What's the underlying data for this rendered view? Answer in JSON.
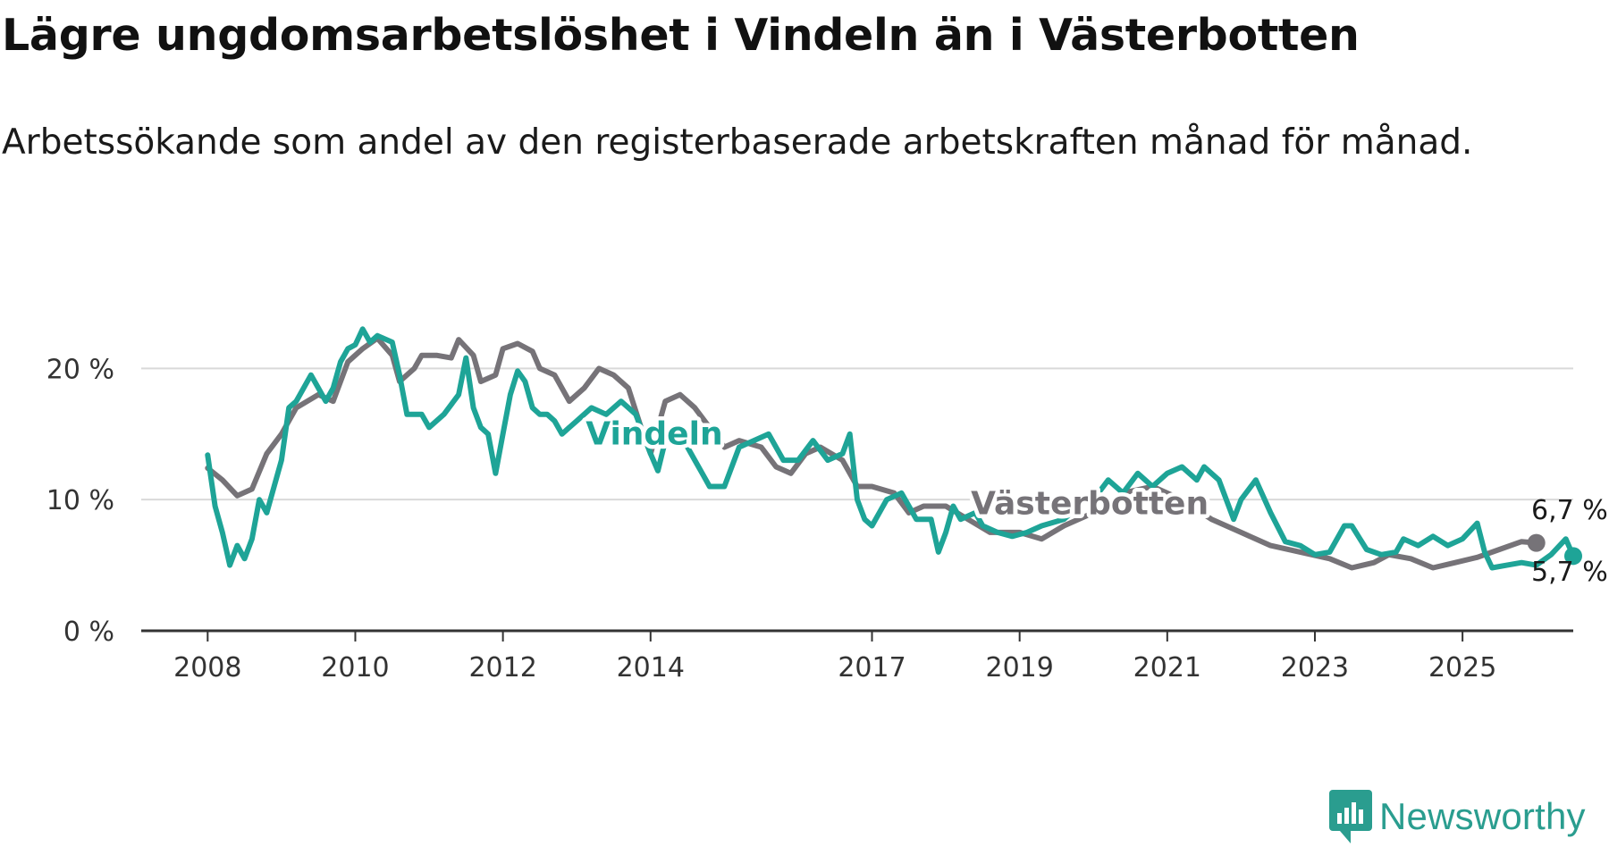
{
  "title": "Lägre ungdomsarbetslöshet i Vindeln än i Västerbotten",
  "subtitle": "Arbetssökande som andel av den registerbaserade arbetskraften månad för månad.",
  "brand": {
    "name": "Newsworthy",
    "color": "#2a9d8f"
  },
  "chart_data": {
    "type": "line",
    "title": "Lägre ungdomsarbetslöshet i Vindeln än i Västerbotten",
    "subtitle": "Arbetssökande som andel av den registerbaserade arbetskraften månad för månad.",
    "xlabel": "",
    "ylabel": "",
    "x_unit": "year (decimal, monthly data)",
    "xlim": [
      2007.1,
      2026.5
    ],
    "ylim": [
      0,
      22
    ],
    "x_ticks": [
      2008,
      2010,
      2012,
      2014,
      2017,
      2019,
      2021,
      2023,
      2025
    ],
    "x_tick_labels": [
      "2008",
      "2010",
      "2012",
      "2014",
      "2017",
      "2019",
      "2021",
      "2023",
      "2025"
    ],
    "y_ticks": [
      0,
      10,
      20
    ],
    "y_tick_labels": [
      "0 %",
      "10 %",
      "20 %"
    ],
    "grid": "horizontal",
    "legend": "inline labels",
    "series": [
      {
        "name": "Västerbotten",
        "color": "#767378",
        "end_label": "6,7 %",
        "points": [
          [
            2008.0,
            12.4
          ],
          [
            2008.2,
            11.5
          ],
          [
            2008.4,
            10.3
          ],
          [
            2008.6,
            10.8
          ],
          [
            2008.8,
            13.5
          ],
          [
            2009.0,
            15.0
          ],
          [
            2009.2,
            17.0
          ],
          [
            2009.5,
            18.0
          ],
          [
            2009.7,
            17.5
          ],
          [
            2009.9,
            20.5
          ],
          [
            2010.1,
            21.5
          ],
          [
            2010.3,
            22.3
          ],
          [
            2010.5,
            21.0
          ],
          [
            2010.6,
            19.0
          ],
          [
            2010.8,
            20.0
          ],
          [
            2010.9,
            21.0
          ],
          [
            2011.1,
            21.0
          ],
          [
            2011.3,
            20.8
          ],
          [
            2011.4,
            22.2
          ],
          [
            2011.6,
            21.0
          ],
          [
            2011.7,
            19.0
          ],
          [
            2011.9,
            19.5
          ],
          [
            2012.0,
            21.5
          ],
          [
            2012.2,
            21.9
          ],
          [
            2012.4,
            21.3
          ],
          [
            2012.5,
            20.0
          ],
          [
            2012.7,
            19.5
          ],
          [
            2012.9,
            17.5
          ],
          [
            2013.1,
            18.5
          ],
          [
            2013.3,
            20.0
          ],
          [
            2013.5,
            19.5
          ],
          [
            2013.7,
            18.5
          ],
          [
            2013.9,
            15.0
          ],
          [
            2014.0,
            13.5
          ],
          [
            2014.2,
            17.5
          ],
          [
            2014.4,
            18.0
          ],
          [
            2014.6,
            17.0
          ],
          [
            2014.8,
            15.5
          ],
          [
            2015.0,
            14.0
          ],
          [
            2015.2,
            14.5
          ],
          [
            2015.5,
            14.0
          ],
          [
            2015.7,
            12.5
          ],
          [
            2015.9,
            12.0
          ],
          [
            2016.1,
            13.5
          ],
          [
            2016.3,
            14.0
          ],
          [
            2016.6,
            13.0
          ],
          [
            2016.8,
            11.0
          ],
          [
            2017.0,
            11.0
          ],
          [
            2017.3,
            10.5
          ],
          [
            2017.5,
            9.0
          ],
          [
            2017.7,
            9.5
          ],
          [
            2018.0,
            9.5
          ],
          [
            2018.3,
            8.5
          ],
          [
            2018.6,
            7.5
          ],
          [
            2019.0,
            7.5
          ],
          [
            2019.3,
            7.0
          ],
          [
            2019.6,
            8.0
          ],
          [
            2020.0,
            9.0
          ],
          [
            2020.4,
            10.5
          ],
          [
            2020.8,
            11.0
          ],
          [
            2021.2,
            10.0
          ],
          [
            2021.6,
            8.5
          ],
          [
            2022.0,
            7.5
          ],
          [
            2022.4,
            6.5
          ],
          [
            2022.8,
            6.0
          ],
          [
            2023.2,
            5.5
          ],
          [
            2023.5,
            4.8
          ],
          [
            2023.8,
            5.2
          ],
          [
            2024.0,
            5.8
          ],
          [
            2024.3,
            5.5
          ],
          [
            2024.6,
            4.8
          ],
          [
            2024.9,
            5.2
          ],
          [
            2025.2,
            5.6
          ],
          [
            2025.5,
            6.2
          ],
          [
            2025.8,
            6.8
          ],
          [
            2026.0,
            6.7
          ]
        ]
      },
      {
        "name": "Vindeln",
        "color": "#1ea497",
        "end_label": "5,7 %",
        "points": [
          [
            2008.0,
            13.4
          ],
          [
            2008.1,
            9.5
          ],
          [
            2008.2,
            7.5
          ],
          [
            2008.3,
            5.0
          ],
          [
            2008.4,
            6.5
          ],
          [
            2008.5,
            5.5
          ],
          [
            2008.6,
            7.0
          ],
          [
            2008.7,
            10.0
          ],
          [
            2008.8,
            9.0
          ],
          [
            2009.0,
            13.0
          ],
          [
            2009.1,
            17.0
          ],
          [
            2009.2,
            17.5
          ],
          [
            2009.4,
            19.5
          ],
          [
            2009.5,
            18.5
          ],
          [
            2009.6,
            17.5
          ],
          [
            2009.7,
            18.5
          ],
          [
            2009.8,
            20.5
          ],
          [
            2009.9,
            21.5
          ],
          [
            2010.0,
            21.8
          ],
          [
            2010.1,
            23.0
          ],
          [
            2010.2,
            22.0
          ],
          [
            2010.3,
            22.5
          ],
          [
            2010.5,
            22.0
          ],
          [
            2010.6,
            19.5
          ],
          [
            2010.7,
            16.5
          ],
          [
            2010.9,
            16.5
          ],
          [
            2011.0,
            15.5
          ],
          [
            2011.2,
            16.5
          ],
          [
            2011.4,
            18.0
          ],
          [
            2011.5,
            20.8
          ],
          [
            2011.6,
            17.0
          ],
          [
            2011.7,
            15.5
          ],
          [
            2011.8,
            15.0
          ],
          [
            2011.9,
            12.0
          ],
          [
            2012.0,
            15.0
          ],
          [
            2012.1,
            18.0
          ],
          [
            2012.2,
            19.8
          ],
          [
            2012.3,
            19.0
          ],
          [
            2012.4,
            17.0
          ],
          [
            2012.5,
            16.5
          ],
          [
            2012.6,
            16.5
          ],
          [
            2012.7,
            16.0
          ],
          [
            2012.8,
            15.0
          ],
          [
            2012.9,
            15.5
          ],
          [
            2013.0,
            16.0
          ],
          [
            2013.2,
            17.0
          ],
          [
            2013.4,
            16.5
          ],
          [
            2013.6,
            17.5
          ],
          [
            2013.8,
            16.5
          ],
          [
            2013.9,
            15.0
          ],
          [
            2014.0,
            13.5
          ],
          [
            2014.1,
            12.2
          ],
          [
            2014.2,
            14.5
          ],
          [
            2014.4,
            15.0
          ],
          [
            2014.5,
            14.0
          ],
          [
            2014.6,
            13.0
          ],
          [
            2014.7,
            12.0
          ],
          [
            2014.8,
            11.0
          ],
          [
            2015.0,
            11.0
          ],
          [
            2015.2,
            14.0
          ],
          [
            2015.4,
            14.5
          ],
          [
            2015.6,
            15.0
          ],
          [
            2015.8,
            13.0
          ],
          [
            2016.0,
            13.0
          ],
          [
            2016.2,
            14.5
          ],
          [
            2016.4,
            13.0
          ],
          [
            2016.6,
            13.5
          ],
          [
            2016.7,
            15.0
          ],
          [
            2016.8,
            10.0
          ],
          [
            2016.9,
            8.5
          ],
          [
            2017.0,
            8.0
          ],
          [
            2017.2,
            10.0
          ],
          [
            2017.4,
            10.5
          ],
          [
            2017.5,
            9.5
          ],
          [
            2017.6,
            8.5
          ],
          [
            2017.8,
            8.5
          ],
          [
            2017.9,
            6.0
          ],
          [
            2018.0,
            7.5
          ],
          [
            2018.1,
            9.5
          ],
          [
            2018.2,
            8.5
          ],
          [
            2018.4,
            9.0
          ],
          [
            2018.5,
            8.0
          ],
          [
            2018.7,
            7.5
          ],
          [
            2018.9,
            7.2
          ],
          [
            2019.1,
            7.5
          ],
          [
            2019.3,
            8.0
          ],
          [
            2019.6,
            8.5
          ],
          [
            2019.9,
            10.0
          ],
          [
            2020.0,
            10.0
          ],
          [
            2020.2,
            11.5
          ],
          [
            2020.4,
            10.5
          ],
          [
            2020.6,
            12.0
          ],
          [
            2020.8,
            11.0
          ],
          [
            2021.0,
            12.0
          ],
          [
            2021.2,
            12.5
          ],
          [
            2021.4,
            11.5
          ],
          [
            2021.5,
            12.5
          ],
          [
            2021.7,
            11.5
          ],
          [
            2021.9,
            8.5
          ],
          [
            2022.0,
            10.0
          ],
          [
            2022.2,
            11.5
          ],
          [
            2022.4,
            9.0
          ],
          [
            2022.6,
            6.8
          ],
          [
            2022.8,
            6.5
          ],
          [
            2023.0,
            5.8
          ],
          [
            2023.2,
            6.0
          ],
          [
            2023.4,
            8.0
          ],
          [
            2023.5,
            8.0
          ],
          [
            2023.7,
            6.2
          ],
          [
            2023.9,
            5.8
          ],
          [
            2024.1,
            6.0
          ],
          [
            2024.2,
            7.0
          ],
          [
            2024.4,
            6.5
          ],
          [
            2024.6,
            7.2
          ],
          [
            2024.8,
            6.5
          ],
          [
            2025.0,
            7.0
          ],
          [
            2025.2,
            8.2
          ],
          [
            2025.3,
            6.0
          ],
          [
            2025.4,
            4.8
          ],
          [
            2025.6,
            5.0
          ],
          [
            2025.8,
            5.2
          ],
          [
            2026.0,
            5.0
          ],
          [
            2026.2,
            5.8
          ],
          [
            2026.4,
            7.0
          ],
          [
            2026.5,
            5.7
          ]
        ]
      }
    ],
    "annotations": [
      {
        "text": "Vindeln",
        "series": "Vindeln",
        "x": 2014.05,
        "y": 14.2
      },
      {
        "text": "Västerbotten",
        "series": "Västerbotten",
        "x": 2019.95,
        "y": 8.9
      },
      {
        "text": "6,7 %",
        "series": "Västerbotten",
        "x": 2026.45,
        "y": 8.5
      },
      {
        "text": "5,7 %",
        "series": "Vindeln",
        "x": 2026.45,
        "y": 3.8
      }
    ]
  }
}
